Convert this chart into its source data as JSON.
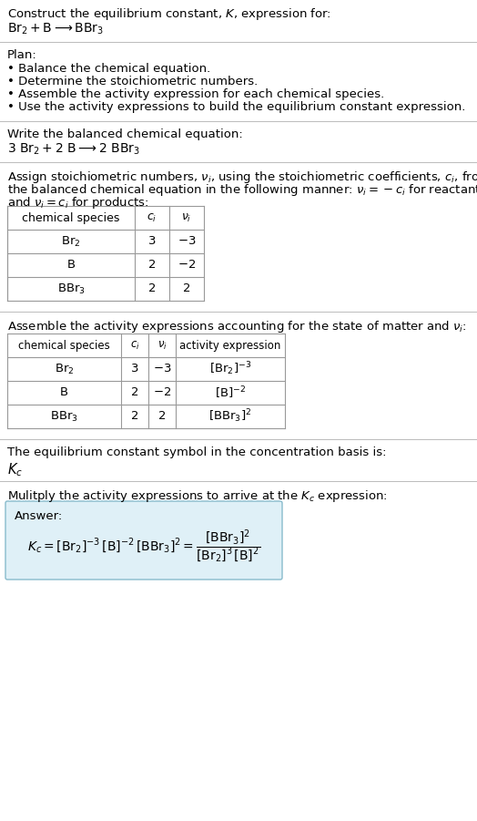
{
  "title_line1": "Construct the equilibrium constant, $K$, expression for:",
  "title_line2": "$\\mathrm{Br_2 + B \\longrightarrow BBr_3}$",
  "plan_header": "Plan:",
  "plan_bullets": [
    "Balance the chemical equation.",
    "Determine the stoichiometric numbers.",
    "Assemble the activity expression for each chemical species.",
    "Use the activity expressions to build the equilibrium constant expression."
  ],
  "balanced_header": "Write the balanced chemical equation:",
  "balanced_eq": "$\\mathrm{3\\ Br_2 + 2\\ B \\longrightarrow 2\\ BBr_3}$",
  "stoich_intro1": "Assign stoichiometric numbers, $\\nu_i$, using the stoichiometric coefficients, $c_i$, from",
  "stoich_intro2": "the balanced chemical equation in the following manner: $\\nu_i = -c_i$ for reactants",
  "stoich_intro3": "and $\\nu_i = c_i$ for products:",
  "table1_headers": [
    "chemical species",
    "$c_i$",
    "$\\nu_i$"
  ],
  "table1_rows": [
    [
      "$\\mathrm{Br_2}$",
      "3",
      "$-3$"
    ],
    [
      "$\\mathrm{B}$",
      "2",
      "$-2$"
    ],
    [
      "$\\mathrm{BBr_3}$",
      "2",
      "2"
    ]
  ],
  "activity_intro": "Assemble the activity expressions accounting for the state of matter and $\\nu_i$:",
  "table2_headers": [
    "chemical species",
    "$c_i$",
    "$\\nu_i$",
    "activity expression"
  ],
  "table2_rows": [
    [
      "$\\mathrm{Br_2}$",
      "3",
      "$-3$",
      "$[\\mathrm{Br_2}]^{-3}$"
    ],
    [
      "$\\mathrm{B}$",
      "2",
      "$-2$",
      "$[\\mathrm{B}]^{-2}$"
    ],
    [
      "$\\mathrm{BBr_3}$",
      "2",
      "2",
      "$[\\mathrm{BBr_3}]^{2}$"
    ]
  ],
  "kc_text": "The equilibrium constant symbol in the concentration basis is:",
  "kc_symbol": "$K_c$",
  "multiply_text": "Mulitply the activity expressions to arrive at the $K_c$ expression:",
  "answer_label": "Answer:",
  "kc_expr": "$K_c = [\\mathrm{Br_2}]^{-3}\\,[\\mathrm{B}]^{-2}\\,[\\mathrm{BBr_3}]^{2} = \\dfrac{[\\mathrm{BBr_3}]^{2}}{[\\mathrm{Br_2}]^{3}\\,[\\mathrm{B}]^{2}}$",
  "bg_color": "#ffffff",
  "answer_box_color": "#dff0f7",
  "answer_box_border": "#88bbcc",
  "table_border_color": "#999999",
  "text_color": "#000000",
  "sep_color": "#bbbbbb",
  "font_size": 9.5
}
